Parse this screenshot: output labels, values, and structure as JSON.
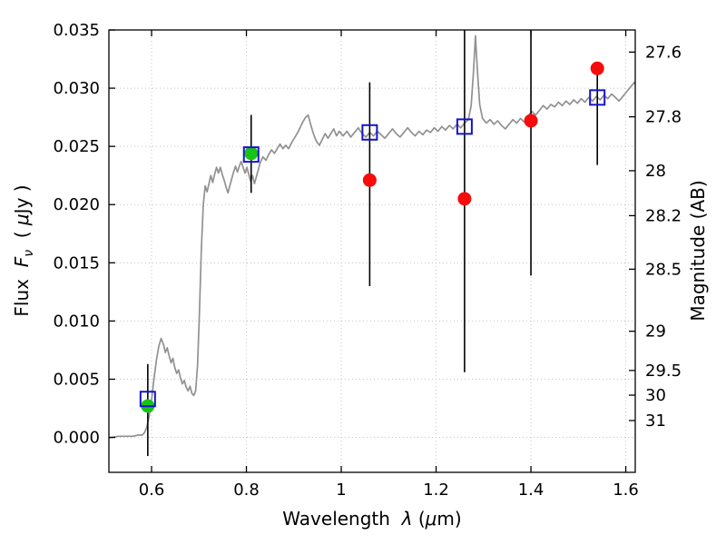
{
  "chart_data": {
    "type": "line",
    "title": "",
    "description": "Galaxy SED: model spectrum (gray line), observed photometry (green/red filled circles with black error bars), model band photometry (open blue squares)",
    "labels": {
      "xlabel": {
        "prefix": "Wavelength  ",
        "symbol": "λ",
        "unit_open": " (",
        "mu": "μ",
        "unit_close": "m)"
      },
      "ylabel": {
        "prefix": "Flux  ",
        "symbol": "F",
        "subscript": "ν",
        "unit_open": "  ( ",
        "mu": "μ",
        "unit_close": "Jy )"
      },
      "ylabel_right": "Magnitude (AB)"
    },
    "xlim": [
      0.51,
      1.62
    ],
    "ylim": [
      -0.003,
      0.035
    ],
    "grid": "dotted",
    "legend": "none",
    "xticks": {
      "values": [
        0.6,
        0.8,
        1.0,
        1.2,
        1.4,
        1.6
      ],
      "labels": [
        "0.6",
        "0.8",
        "1",
        "1.2",
        "1.4",
        "1.6"
      ]
    },
    "yticks_left": {
      "values": [
        0.0,
        0.005,
        0.01,
        0.015,
        0.02,
        0.025,
        0.03,
        0.035
      ],
      "labels": [
        "0.000",
        "0.005",
        "0.010",
        "0.015",
        "0.020",
        "0.025",
        "0.030",
        "0.035"
      ]
    },
    "yticks_right": {
      "labels": [
        "27.6",
        "27.8",
        "28",
        "28.2",
        "28.5",
        "29",
        "29.5",
        "30",
        "31"
      ],
      "flux_values": [
        0.0331,
        0.02754,
        0.02291,
        0.01905,
        0.01445,
        0.00912,
        0.00575,
        0.00363,
        0.00145
      ]
    },
    "colors": {
      "background": "#ffffff",
      "spectrum": "#919191",
      "grid": "#c4c4c4",
      "errorbar": "#000000",
      "observed_green": "#17c317",
      "observed_red": "#f60c0c",
      "model_blue": "#1414cc",
      "frame": "#000000"
    },
    "photometry": {
      "observed": [
        {
          "x": 0.592,
          "y": 0.0027,
          "color": "green",
          "err_lo": -0.0016,
          "err_hi": 0.0063
        },
        {
          "x": 0.81,
          "y": 0.0244,
          "color": "green",
          "err_lo": 0.021,
          "err_hi": 0.0277
        },
        {
          "x": 1.06,
          "y": 0.0221,
          "color": "red",
          "err_lo": 0.013,
          "err_hi": 0.0305
        },
        {
          "x": 1.26,
          "y": 0.0205,
          "color": "red",
          "err_lo": 0.0056,
          "err_hi": 0.039
        },
        {
          "x": 1.4,
          "y": 0.0272,
          "color": "red",
          "err_lo": 0.0139,
          "err_hi": 0.039
        },
        {
          "x": 1.54,
          "y": 0.0317,
          "color": "red",
          "err_lo": 0.0234,
          "err_hi": 0.0318
        }
      ],
      "model": [
        {
          "x": 0.592,
          "y": 0.0033
        },
        {
          "x": 0.81,
          "y": 0.0243
        },
        {
          "x": 1.06,
          "y": 0.0262
        },
        {
          "x": 1.26,
          "y": 0.0267
        },
        {
          "x": 1.54,
          "y": 0.0292
        }
      ]
    },
    "spectrum": {
      "points": [
        [
          0.5,
          0.0
        ],
        [
          0.515,
          0.0
        ],
        [
          0.53,
          0.0001
        ],
        [
          0.545,
          0.0001
        ],
        [
          0.56,
          0.0001
        ],
        [
          0.572,
          0.0002
        ],
        [
          0.58,
          0.0002
        ],
        [
          0.585,
          0.0004
        ],
        [
          0.59,
          0.0009
        ],
        [
          0.595,
          0.0018
        ],
        [
          0.6,
          0.0032
        ],
        [
          0.605,
          0.005
        ],
        [
          0.61,
          0.0066
        ],
        [
          0.615,
          0.0078
        ],
        [
          0.62,
          0.0085
        ],
        [
          0.625,
          0.008
        ],
        [
          0.629,
          0.0073
        ],
        [
          0.633,
          0.0077
        ],
        [
          0.637,
          0.007
        ],
        [
          0.641,
          0.0064
        ],
        [
          0.645,
          0.0068
        ],
        [
          0.649,
          0.006
        ],
        [
          0.653,
          0.0055
        ],
        [
          0.657,
          0.0058
        ],
        [
          0.661,
          0.0051
        ],
        [
          0.665,
          0.0046
        ],
        [
          0.669,
          0.0049
        ],
        [
          0.673,
          0.0043
        ],
        [
          0.677,
          0.004
        ],
        [
          0.681,
          0.0044
        ],
        [
          0.685,
          0.0038
        ],
        [
          0.689,
          0.0036
        ],
        [
          0.693,
          0.004
        ],
        [
          0.697,
          0.0062
        ],
        [
          0.701,
          0.0108
        ],
        [
          0.705,
          0.0162
        ],
        [
          0.709,
          0.02
        ],
        [
          0.713,
          0.0216
        ],
        [
          0.717,
          0.0211
        ],
        [
          0.721,
          0.0218
        ],
        [
          0.725,
          0.0225
        ],
        [
          0.729,
          0.0219
        ],
        [
          0.733,
          0.0226
        ],
        [
          0.737,
          0.0232
        ],
        [
          0.741,
          0.0227
        ],
        [
          0.745,
          0.0232
        ],
        [
          0.749,
          0.0226
        ],
        [
          0.753,
          0.0221
        ],
        [
          0.757,
          0.0215
        ],
        [
          0.761,
          0.021
        ],
        [
          0.765,
          0.0216
        ],
        [
          0.769,
          0.0222
        ],
        [
          0.773,
          0.0228
        ],
        [
          0.777,
          0.0233
        ],
        [
          0.781,
          0.0228
        ],
        [
          0.785,
          0.0233
        ],
        [
          0.789,
          0.0237
        ],
        [
          0.793,
          0.0232
        ],
        [
          0.797,
          0.0227
        ],
        [
          0.801,
          0.0232
        ],
        [
          0.805,
          0.0226
        ],
        [
          0.809,
          0.022
        ],
        [
          0.813,
          0.0225
        ],
        [
          0.817,
          0.0218
        ],
        [
          0.821,
          0.0224
        ],
        [
          0.825,
          0.023
        ],
        [
          0.829,
          0.0236
        ],
        [
          0.835,
          0.0241
        ],
        [
          0.841,
          0.0238
        ],
        [
          0.847,
          0.0243
        ],
        [
          0.853,
          0.0247
        ],
        [
          0.859,
          0.0244
        ],
        [
          0.865,
          0.0248
        ],
        [
          0.871,
          0.0252
        ],
        [
          0.877,
          0.0248
        ],
        [
          0.883,
          0.0251
        ],
        [
          0.889,
          0.0248
        ],
        [
          0.895,
          0.0253
        ],
        [
          0.901,
          0.0257
        ],
        [
          0.907,
          0.0261
        ],
        [
          0.913,
          0.0266
        ],
        [
          0.919,
          0.0271
        ],
        [
          0.925,
          0.0275
        ],
        [
          0.93,
          0.0277
        ],
        [
          0.936,
          0.0268
        ],
        [
          0.942,
          0.026
        ],
        [
          0.948,
          0.0254
        ],
        [
          0.954,
          0.0251
        ],
        [
          0.96,
          0.0256
        ],
        [
          0.966,
          0.0261
        ],
        [
          0.972,
          0.0257
        ],
        [
          0.978,
          0.0261
        ],
        [
          0.984,
          0.0265
        ],
        [
          0.99,
          0.0259
        ],
        [
          0.996,
          0.0263
        ],
        [
          1.004,
          0.0259
        ],
        [
          1.012,
          0.0263
        ],
        [
          1.02,
          0.0258
        ],
        [
          1.028,
          0.0262
        ],
        [
          1.036,
          0.0266
        ],
        [
          1.044,
          0.0261
        ],
        [
          1.052,
          0.0258
        ],
        [
          1.06,
          0.0262
        ],
        [
          1.068,
          0.0259
        ],
        [
          1.076,
          0.0263
        ],
        [
          1.084,
          0.026
        ],
        [
          1.092,
          0.0257
        ],
        [
          1.1,
          0.0261
        ],
        [
          1.108,
          0.0265
        ],
        [
          1.116,
          0.0261
        ],
        [
          1.124,
          0.0258
        ],
        [
          1.132,
          0.0262
        ],
        [
          1.14,
          0.0266
        ],
        [
          1.148,
          0.0262
        ],
        [
          1.156,
          0.0259
        ],
        [
          1.164,
          0.0263
        ],
        [
          1.172,
          0.026
        ],
        [
          1.18,
          0.0264
        ],
        [
          1.188,
          0.0262
        ],
        [
          1.196,
          0.0266
        ],
        [
          1.204,
          0.0263
        ],
        [
          1.212,
          0.0267
        ],
        [
          1.22,
          0.0264
        ],
        [
          1.228,
          0.0268
        ],
        [
          1.236,
          0.0265
        ],
        [
          1.244,
          0.0269
        ],
        [
          1.252,
          0.0266
        ],
        [
          1.26,
          0.027
        ],
        [
          1.268,
          0.0273
        ],
        [
          1.274,
          0.0285
        ],
        [
          1.279,
          0.0315
        ],
        [
          1.283,
          0.0345
        ],
        [
          1.287,
          0.0316
        ],
        [
          1.292,
          0.0286
        ],
        [
          1.298,
          0.0274
        ],
        [
          1.306,
          0.027
        ],
        [
          1.314,
          0.0273
        ],
        [
          1.322,
          0.0269
        ],
        [
          1.33,
          0.0272
        ],
        [
          1.338,
          0.0268
        ],
        [
          1.346,
          0.0265
        ],
        [
          1.354,
          0.0269
        ],
        [
          1.362,
          0.0273
        ],
        [
          1.37,
          0.027
        ],
        [
          1.378,
          0.0274
        ],
        [
          1.386,
          0.0271
        ],
        [
          1.394,
          0.0276
        ],
        [
          1.402,
          0.028
        ],
        [
          1.41,
          0.0277
        ],
        [
          1.418,
          0.0281
        ],
        [
          1.426,
          0.0285
        ],
        [
          1.434,
          0.0282
        ],
        [
          1.442,
          0.0286
        ],
        [
          1.45,
          0.0284
        ],
        [
          1.458,
          0.0288
        ],
        [
          1.466,
          0.0285
        ],
        [
          1.474,
          0.0289
        ],
        [
          1.482,
          0.0286
        ],
        [
          1.49,
          0.029
        ],
        [
          1.498,
          0.0287
        ],
        [
          1.506,
          0.0291
        ],
        [
          1.514,
          0.0288
        ],
        [
          1.522,
          0.0292
        ],
        [
          1.53,
          0.0289
        ],
        [
          1.538,
          0.0293
        ],
        [
          1.546,
          0.029
        ],
        [
          1.554,
          0.0294
        ],
        [
          1.562,
          0.0291
        ],
        [
          1.57,
          0.0295
        ],
        [
          1.578,
          0.0292
        ],
        [
          1.586,
          0.0289
        ],
        [
          1.594,
          0.0293
        ],
        [
          1.602,
          0.0297
        ],
        [
          1.61,
          0.0301
        ],
        [
          1.618,
          0.0305
        ],
        [
          1.626,
          0.0299
        ],
        [
          1.634,
          0.0302
        ],
        [
          1.642,
          0.0297
        ],
        [
          1.65,
          0.03
        ]
      ]
    }
  }
}
